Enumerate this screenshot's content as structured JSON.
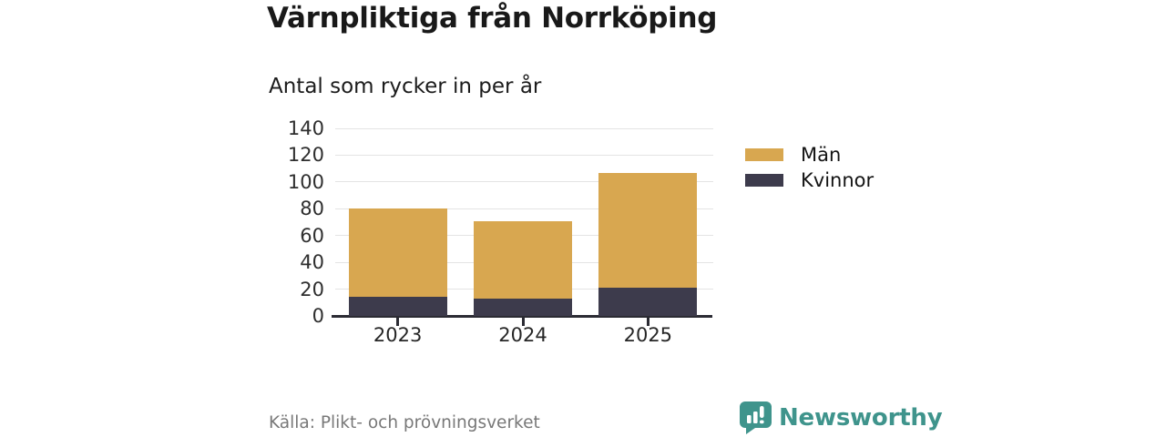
{
  "header": {
    "title": "Värnpliktiga från Norrköping",
    "subtitle": "Antal som rycker in per år"
  },
  "chart_data": {
    "type": "bar",
    "stacked": true,
    "title": "Värnpliktiga från Norrköping",
    "subtitle": "Antal som rycker in per år",
    "categories": [
      "2023",
      "2024",
      "2025"
    ],
    "series": [
      {
        "name": "Kvinnor",
        "color": "#3d3b4c",
        "values": [
          14,
          13,
          21
        ]
      },
      {
        "name": "Män",
        "color": "#d8a750",
        "values": [
          66,
          58,
          86
        ]
      }
    ],
    "totals": [
      80,
      71,
      107
    ],
    "xlabel": "",
    "ylabel": "",
    "ylim": [
      0,
      140
    ],
    "yticks": [
      0,
      20,
      40,
      60,
      80,
      100,
      120,
      140
    ],
    "grid": true,
    "legend_position": "right"
  },
  "legend": {
    "items": [
      {
        "label": "Män",
        "color": "#d8a750"
      },
      {
        "label": "Kvinnor",
        "color": "#3d3b4c"
      }
    ]
  },
  "footer": {
    "source": "Källa: Plikt- och prövningsverket",
    "brand": "Newsworthy",
    "brand_color": "#3f948c",
    "logo_icon": "bar-chart-speech-bubble-icon"
  },
  "colors": {
    "grid": "#e4e4e4",
    "axis": "#2b2b33",
    "tick_label": "#2e2e2e"
  }
}
